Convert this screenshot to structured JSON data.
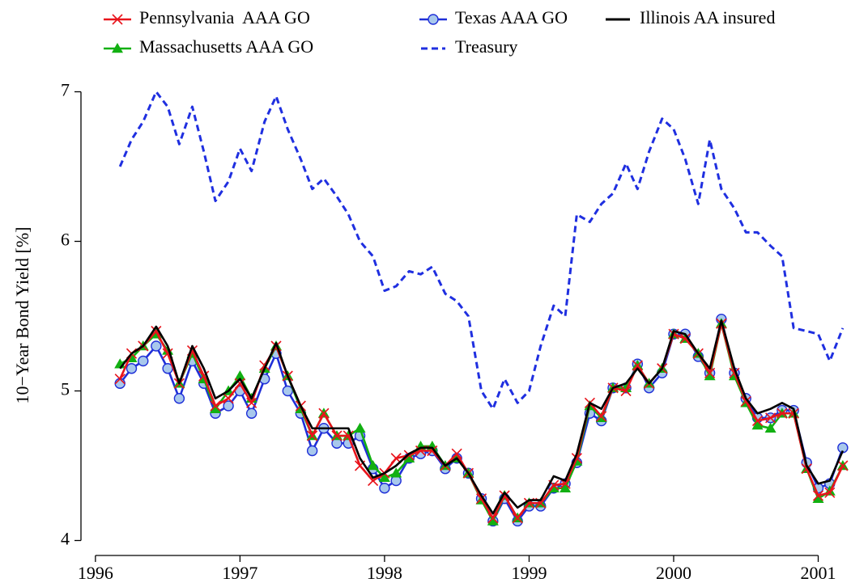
{
  "chart_data": {
    "type": "line",
    "ylabel": "10−Year Bond Yield [%]",
    "x": [
      1996.17,
      1996.25,
      1996.33,
      1996.42,
      1996.5,
      1996.58,
      1996.67,
      1996.75,
      1996.83,
      1996.92,
      1997.0,
      1997.08,
      1997.17,
      1997.25,
      1997.33,
      1997.42,
      1997.5,
      1997.58,
      1997.67,
      1997.75,
      1997.83,
      1997.92,
      1998.0,
      1998.08,
      1998.17,
      1998.25,
      1998.33,
      1998.42,
      1998.5,
      1998.58,
      1998.67,
      1998.75,
      1998.83,
      1998.92,
      1999.0,
      1999.08,
      1999.17,
      1999.25,
      1999.33,
      1999.42,
      1999.5,
      1999.58,
      1999.67,
      1999.75,
      1999.83,
      1999.92,
      2000.0,
      2000.08,
      2000.17,
      2000.25,
      2000.33,
      2000.42,
      2000.5,
      2000.58,
      2000.67,
      2000.75,
      2000.83,
      2000.92,
      2001.0,
      2001.08,
      2001.17
    ],
    "series": [
      {
        "name": "Pennsylvania  AAA GO",
        "color": "#e8141c",
        "marker": "x",
        "values": [
          5.08,
          5.25,
          5.3,
          5.4,
          5.25,
          5.05,
          5.27,
          5.1,
          4.9,
          4.95,
          5.05,
          4.92,
          5.17,
          5.3,
          5.1,
          4.9,
          4.7,
          4.85,
          4.7,
          4.7,
          4.5,
          4.4,
          4.45,
          4.55,
          4.57,
          4.6,
          4.6,
          4.5,
          4.58,
          4.45,
          4.28,
          4.15,
          4.3,
          4.15,
          4.25,
          4.25,
          4.37,
          4.38,
          4.55,
          4.92,
          4.83,
          5.02,
          5.0,
          5.17,
          5.05,
          5.15,
          5.38,
          5.35,
          5.25,
          5.12,
          5.45,
          5.12,
          4.93,
          4.8,
          4.82,
          4.85,
          4.85,
          4.48,
          4.3,
          4.32,
          4.5
        ]
      },
      {
        "name": "Texas AAA GO",
        "color": "#1f2fd8",
        "marker": "o",
        "values": [
          5.05,
          5.15,
          5.2,
          5.3,
          5.15,
          4.95,
          5.2,
          5.05,
          4.85,
          4.9,
          5.0,
          4.85,
          5.08,
          5.25,
          5.0,
          4.85,
          4.6,
          4.75,
          4.65,
          4.65,
          4.7,
          4.48,
          4.35,
          4.4,
          4.55,
          4.58,
          4.6,
          4.48,
          4.55,
          4.45,
          4.28,
          4.13,
          4.28,
          4.13,
          4.23,
          4.23,
          4.35,
          4.38,
          4.52,
          4.85,
          4.8,
          5.02,
          5.02,
          5.18,
          5.02,
          5.12,
          5.38,
          5.38,
          5.23,
          5.12,
          5.48,
          5.12,
          4.95,
          4.82,
          4.82,
          4.87,
          4.87,
          4.52,
          4.35,
          4.38,
          4.62
        ]
      },
      {
        "name": "Illinois AA insured",
        "color": "#000000",
        "marker": null,
        "values": [
          5.15,
          5.25,
          5.3,
          5.43,
          5.3,
          5.05,
          5.3,
          5.15,
          4.95,
          5.0,
          5.08,
          4.95,
          5.15,
          5.32,
          5.1,
          4.9,
          4.75,
          4.75,
          4.75,
          4.75,
          4.55,
          4.42,
          4.45,
          4.5,
          4.58,
          4.62,
          4.62,
          4.5,
          4.55,
          4.45,
          4.3,
          4.18,
          4.32,
          4.22,
          4.27,
          4.27,
          4.43,
          4.4,
          4.58,
          4.92,
          4.88,
          5.02,
          5.05,
          5.15,
          5.05,
          5.15,
          5.4,
          5.38,
          5.25,
          5.15,
          5.47,
          5.15,
          4.95,
          4.85,
          4.88,
          4.92,
          4.88,
          4.5,
          4.38,
          4.4,
          4.6
        ]
      },
      {
        "name": "Massachusetts AAA GO",
        "color": "#12b012",
        "marker": "^",
        "values": [
          5.18,
          5.22,
          5.3,
          5.38,
          5.27,
          5.05,
          5.25,
          5.08,
          4.88,
          5.0,
          5.1,
          4.95,
          5.15,
          5.3,
          5.1,
          4.88,
          4.7,
          4.85,
          4.7,
          4.7,
          4.75,
          4.5,
          4.42,
          4.45,
          4.55,
          4.63,
          4.63,
          4.5,
          4.55,
          4.45,
          4.27,
          4.13,
          4.3,
          4.15,
          4.25,
          4.25,
          4.35,
          4.35,
          4.53,
          4.9,
          4.82,
          5.02,
          5.02,
          5.17,
          5.05,
          5.15,
          5.38,
          5.35,
          5.25,
          5.1,
          5.45,
          5.1,
          4.92,
          4.77,
          4.75,
          4.85,
          4.85,
          4.48,
          4.28,
          4.33,
          4.5
        ]
      },
      {
        "name": "Treasury",
        "color": "#1f2fe0",
        "marker": null,
        "line_style": "dashed",
        "values": [
          6.5,
          6.68,
          6.8,
          7.0,
          6.9,
          6.65,
          6.9,
          6.6,
          6.27,
          6.4,
          6.62,
          6.47,
          6.8,
          6.97,
          6.75,
          6.55,
          6.35,
          6.42,
          6.3,
          6.18,
          6.0,
          5.9,
          5.67,
          5.7,
          5.8,
          5.78,
          5.83,
          5.65,
          5.6,
          5.5,
          5.0,
          4.88,
          5.08,
          4.92,
          5.0,
          5.3,
          5.57,
          5.5,
          6.18,
          6.13,
          6.25,
          6.32,
          6.52,
          6.35,
          6.6,
          6.82,
          6.75,
          6.55,
          6.25,
          6.68,
          6.35,
          6.22,
          6.06,
          6.06,
          5.97,
          5.9,
          5.42,
          5.4,
          5.38,
          5.2,
          5.42
        ]
      }
    ],
    "xlim": [
      1995.9,
      2001.21
    ],
    "xticks": [
      1996,
      1997,
      1998,
      1999,
      2000,
      2001
    ],
    "ylim": [
      3.9,
      7.1
    ],
    "yticks": [
      4,
      5,
      6,
      7
    ],
    "grid": false,
    "legend": "top"
  }
}
